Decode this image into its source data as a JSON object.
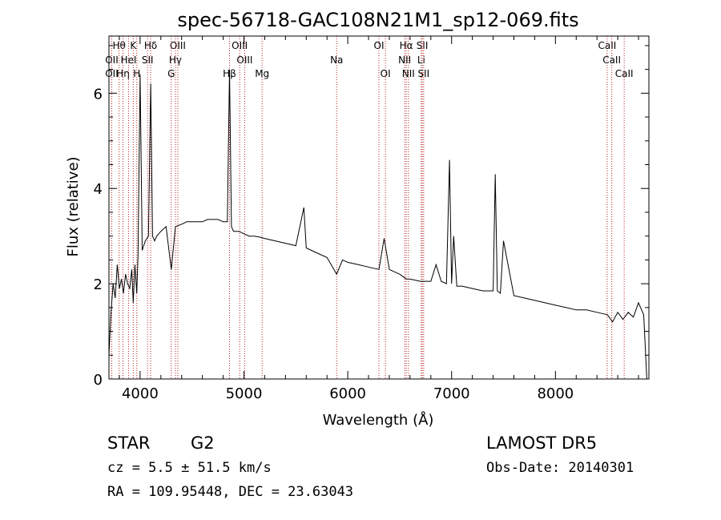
{
  "chart_data": {
    "type": "line",
    "title": "spec-56718-GAC108N21M1_sp12-069.fits",
    "xlabel": "Wavelength (Å)",
    "ylabel": "Flux (relative)",
    "xlim": [
      3700,
      8900
    ],
    "ylim": [
      0,
      7.2
    ],
    "x_ticks": [
      4000,
      5000,
      6000,
      7000,
      8000
    ],
    "y_ticks": [
      0,
      2,
      4,
      6
    ],
    "x_tick_labels": [
      "4000",
      "5000",
      "6000",
      "7000",
      "8000"
    ],
    "y_tick_labels": [
      "0",
      "2",
      "4",
      "6"
    ],
    "grid": false,
    "line_color": "#000000",
    "marker_color": "#b22222",
    "line_markers": [
      {
        "label": "Hθ",
        "wavelength": 3798,
        "row": 0
      },
      {
        "label": "K",
        "wavelength": 3934,
        "row": 0
      },
      {
        "label": "Hδ",
        "wavelength": 4102,
        "row": 0
      },
      {
        "label": "OIII",
        "wavelength": 4363,
        "row": 0
      },
      {
        "label": "OIII",
        "wavelength": 4959,
        "row": 0
      },
      {
        "label": "OI",
        "wavelength": 6300,
        "row": 0
      },
      {
        "label": "Hα",
        "wavelength": 6563,
        "row": 0
      },
      {
        "label": "SII",
        "wavelength": 6717,
        "row": 0
      },
      {
        "label": "OII",
        "wavelength": 3727,
        "row": 1
      },
      {
        "label": "HeI",
        "wavelength": 3889,
        "row": 1
      },
      {
        "label": "SII",
        "wavelength": 4072,
        "row": 1
      },
      {
        "label": "Hγ",
        "wavelength": 4340,
        "row": 1
      },
      {
        "label": "OIII",
        "wavelength": 5007,
        "row": 1
      },
      {
        "label": "Na",
        "wavelength": 5893,
        "row": 1
      },
      {
        "label": "NII",
        "wavelength": 6548,
        "row": 1
      },
      {
        "label": "Li",
        "wavelength": 6708,
        "row": 1
      },
      {
        "label": "CaII",
        "wavelength": 8498,
        "row": 0
      },
      {
        "label": "CaII",
        "wavelength": 8542,
        "row": 1
      },
      {
        "label": "OII",
        "wavelength": 3727,
        "row": 2
      },
      {
        "label": "Hη",
        "wavelength": 3835,
        "row": 2
      },
      {
        "label": "H",
        "wavelength": 3968,
        "row": 2
      },
      {
        "label": "G",
        "wavelength": 4300,
        "row": 2
      },
      {
        "label": "Hβ",
        "wavelength": 4861,
        "row": 2
      },
      {
        "label": "Mg",
        "wavelength": 5175,
        "row": 2
      },
      {
        "label": "OI",
        "wavelength": 6363,
        "row": 2
      },
      {
        "label": "NII",
        "wavelength": 6584,
        "row": 2
      },
      {
        "label": "SII",
        "wavelength": 6731,
        "row": 2
      },
      {
        "label": "CaII",
        "wavelength": 8662,
        "row": 2
      }
    ],
    "series": [
      {
        "x": [
          3700,
          3720,
          3740,
          3760,
          3780,
          3800,
          3820,
          3840,
          3860,
          3880,
          3900,
          3920,
          3934,
          3950,
          3968,
          3980,
          4000,
          4020,
          4050,
          4080,
          4102,
          4120,
          4140,
          4160,
          4200,
          4250,
          4300,
          4340,
          4400,
          4450,
          4500,
          4550,
          4600,
          4650,
          4700,
          4750,
          4800,
          4840,
          4861,
          4880,
          4900,
          4950,
          5000,
          5050,
          5100,
          5150,
          5200,
          5300,
          5400,
          5500,
          5577,
          5600,
          5700,
          5800,
          5893,
          5950,
          6000,
          6100,
          6200,
          6300,
          6350,
          6400,
          6450,
          6500,
          6563,
          6600,
          6700,
          6800,
          6850,
          6900,
          6950,
          6980,
          7000,
          7020,
          7050,
          7100,
          7200,
          7300,
          7400,
          7420,
          7440,
          7470,
          7500,
          7600,
          7700,
          7800,
          7900,
          8000,
          8100,
          8200,
          8300,
          8400,
          8500,
          8550,
          8600,
          8650,
          8700,
          8750,
          8800,
          8850,
          8880
        ],
        "y": [
          0.5,
          1.4,
          2.0,
          1.7,
          2.4,
          1.9,
          2.1,
          1.8,
          2.2,
          2.0,
          1.9,
          2.3,
          1.6,
          2.4,
          1.8,
          2.6,
          6.4,
          2.7,
          2.9,
          3.0,
          6.2,
          3.0,
          2.9,
          3.0,
          3.1,
          3.2,
          2.3,
          3.2,
          3.25,
          3.3,
          3.3,
          3.3,
          3.3,
          3.35,
          3.35,
          3.35,
          3.3,
          3.3,
          6.5,
          3.2,
          3.1,
          3.1,
          3.05,
          3.0,
          3.0,
          2.98,
          2.95,
          2.9,
          2.85,
          2.8,
          3.6,
          2.75,
          2.65,
          2.55,
          2.2,
          2.5,
          2.45,
          2.4,
          2.35,
          2.3,
          2.95,
          2.3,
          2.25,
          2.2,
          2.1,
          2.1,
          2.05,
          2.05,
          2.4,
          2.05,
          2.0,
          4.6,
          2.0,
          3.0,
          1.95,
          1.95,
          1.9,
          1.85,
          1.85,
          4.3,
          1.85,
          1.8,
          2.9,
          1.75,
          1.7,
          1.65,
          1.6,
          1.55,
          1.5,
          1.45,
          1.45,
          1.4,
          1.35,
          1.2,
          1.4,
          1.25,
          1.4,
          1.3,
          1.6,
          1.35,
          0.0
        ]
      }
    ]
  },
  "footer": {
    "class_label": "STAR",
    "subclass": "G2",
    "redshift": "cz = 5.5 ± 51.5 km/s",
    "coords": "RA = 109.95448, DEC =  23.63043",
    "survey": "LAMOST DR5",
    "obs_date": "Obs-Date: 20140301"
  }
}
